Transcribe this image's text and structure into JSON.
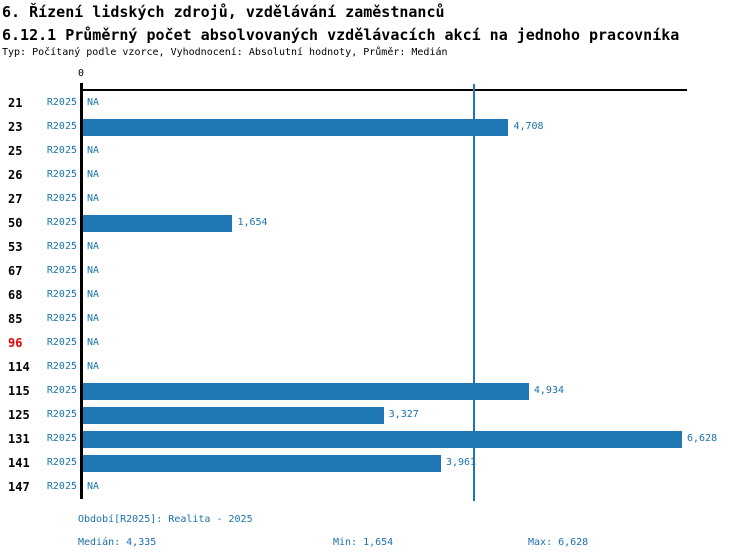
{
  "header": {
    "title": "6. Řízení lidských zdrojů, vzdělávání zaměstnanců",
    "subtitle": "6.12.1 Průměrný počet absolvovaných vzdělávacích akcí na jednoho pracovníka",
    "meta": "Typ: Počítaný podle vzorce, Vyhodnocení: Absolutní hodnoty, Průměr: Medián"
  },
  "chart_data": {
    "type": "bar",
    "orientation": "horizontal",
    "title": "6.12.1 Průměrný počet absolvovaných vzdělávacích akcí na jednoho pracovníka",
    "axis_zero_label": "0",
    "x_max": 6.628,
    "xlim": [
      0,
      6.7
    ],
    "median_value": 4.335,
    "period_label": "R2025",
    "na_label": "NA",
    "grid": false,
    "colors": {
      "bar": "#1f77b4",
      "median_line": "#1f77b4",
      "label_text": "#1b71ad",
      "row_id_text": "#000000",
      "row_id_highlight": "#e60000"
    },
    "rows": [
      {
        "id": "21",
        "value": null,
        "label": "NA",
        "highlight": false
      },
      {
        "id": "23",
        "value": 4.708,
        "label": "4,708",
        "highlight": false
      },
      {
        "id": "25",
        "value": null,
        "label": "NA",
        "highlight": false
      },
      {
        "id": "26",
        "value": null,
        "label": "NA",
        "highlight": false
      },
      {
        "id": "27",
        "value": null,
        "label": "NA",
        "highlight": false
      },
      {
        "id": "50",
        "value": 1.654,
        "label": "1,654",
        "highlight": false
      },
      {
        "id": "53",
        "value": null,
        "label": "NA",
        "highlight": false
      },
      {
        "id": "67",
        "value": null,
        "label": "NA",
        "highlight": false
      },
      {
        "id": "68",
        "value": null,
        "label": "NA",
        "highlight": false
      },
      {
        "id": "85",
        "value": null,
        "label": "NA",
        "highlight": false
      },
      {
        "id": "96",
        "value": null,
        "label": "NA",
        "highlight": true
      },
      {
        "id": "114",
        "value": null,
        "label": "NA",
        "highlight": false
      },
      {
        "id": "115",
        "value": 4.934,
        "label": "4,934",
        "highlight": false
      },
      {
        "id": "125",
        "value": 3.327,
        "label": "3,327",
        "highlight": false
      },
      {
        "id": "131",
        "value": 6.628,
        "label": "6,628",
        "highlight": false
      },
      {
        "id": "141",
        "value": 3.961,
        "label": "3,961",
        "highlight": false
      },
      {
        "id": "147",
        "value": null,
        "label": "NA",
        "highlight": false
      }
    ]
  },
  "footer": {
    "period": "Období[R2025]: Realita - 2025",
    "median": "Medián: 4,335",
    "min": "Min: 1,654",
    "max": "Max: 6,628"
  }
}
